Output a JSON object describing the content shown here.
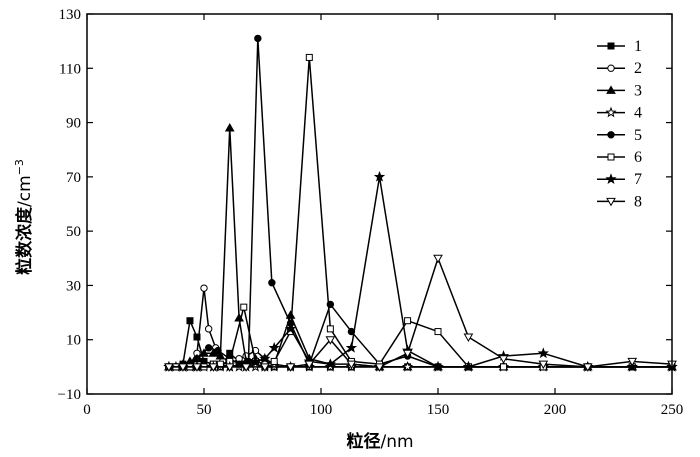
{
  "chart_data": {
    "type": "line",
    "xlabel_text": "粒径",
    "xlabel_unit": "/nm",
    "ylabel_text": "粒数浓度",
    "ylabel_unit": "/cm",
    "ylabel_exp": "−3",
    "xlim": [
      0,
      250
    ],
    "ylim": [
      -10,
      130
    ],
    "xticks": [
      0,
      50,
      100,
      150,
      200,
      250
    ],
    "yticks": [
      -10,
      10,
      30,
      50,
      70,
      90,
      110,
      130
    ],
    "xtick_labels": [
      "0",
      "50",
      "100",
      "150",
      "200",
      "250"
    ],
    "ytick_labels": [
      "−10",
      "10",
      "30",
      "50",
      "70",
      "90",
      "110",
      "130"
    ],
    "grid": false,
    "legend_position": "top-right",
    "series": [
      {
        "name": "1",
        "marker": "square-filled",
        "x": [
          35,
          38,
          41,
          44,
          47,
          50,
          54,
          57,
          61,
          65,
          68,
          72,
          76,
          80,
          87,
          95,
          104,
          113,
          125,
          137,
          150,
          163,
          178,
          195,
          214,
          233,
          250
        ],
        "y": [
          0,
          0,
          1,
          17,
          11,
          2,
          1,
          0,
          5,
          2,
          1,
          1,
          0,
          0,
          0,
          0,
          0,
          0,
          0,
          0,
          0,
          0,
          0,
          0,
          0,
          0,
          0
        ]
      },
      {
        "name": "2",
        "marker": "circle-open",
        "x": [
          35,
          38,
          41,
          44,
          47,
          50,
          52,
          55,
          58,
          61,
          65,
          68,
          72,
          76,
          80,
          87,
          95,
          104,
          113,
          125,
          137,
          150,
          163,
          178,
          195,
          214,
          233,
          250
        ],
        "y": [
          0,
          0,
          0,
          1,
          5,
          29,
          14,
          7,
          2,
          1,
          3,
          4,
          6,
          3,
          1,
          0,
          0,
          0,
          0,
          0,
          0,
          0,
          0,
          0,
          0,
          0,
          0,
          0
        ]
      },
      {
        "name": "3",
        "marker": "triangle-filled",
        "x": [
          35,
          38,
          41,
          44,
          47,
          50,
          54,
          57,
          61,
          65,
          68,
          72,
          76,
          80,
          87,
          95,
          104,
          113,
          125,
          137,
          150,
          163,
          178,
          195,
          214,
          233,
          250
        ],
        "y": [
          0,
          0,
          1,
          2,
          3,
          5,
          5,
          4,
          88,
          18,
          2,
          3,
          2,
          1,
          19,
          3,
          1,
          1,
          0,
          0,
          0,
          0,
          0,
          0,
          0,
          0,
          0
        ]
      },
      {
        "name": "4",
        "marker": "star-open",
        "x": [
          35,
          38,
          41,
          44,
          47,
          50,
          54,
          57,
          61,
          65,
          68,
          72,
          76,
          80,
          87,
          95,
          104,
          113,
          125,
          137,
          150,
          163,
          178,
          195,
          214,
          233,
          250
        ],
        "y": [
          0,
          0,
          0,
          0,
          0,
          0,
          0,
          0,
          0,
          0,
          0,
          0,
          0,
          0,
          0,
          0,
          0,
          0,
          0,
          0,
          0,
          0,
          0,
          0,
          0,
          0,
          0
        ]
      },
      {
        "name": "5",
        "marker": "circle-filled",
        "x": [
          35,
          38,
          41,
          44,
          47,
          52,
          56,
          61,
          65,
          69,
          73,
          79,
          87,
          95,
          104,
          113,
          125,
          137,
          150,
          163,
          178,
          195,
          214,
          233,
          250
        ],
        "y": [
          0,
          0,
          0,
          0,
          3,
          7,
          6,
          3,
          1,
          2,
          121,
          31,
          16,
          1,
          23,
          13,
          1,
          4,
          0,
          0,
          0,
          0,
          0,
          0,
          0
        ]
      },
      {
        "name": "6",
        "marker": "square-open",
        "x": [
          35,
          38,
          41,
          44,
          47,
          50,
          54,
          57,
          61,
          67,
          72,
          76,
          80,
          87,
          95,
          104,
          113,
          125,
          137,
          150,
          163,
          178,
          195,
          214,
          233,
          250
        ],
        "y": [
          0,
          0,
          0,
          0,
          0,
          0,
          1,
          1,
          2,
          22,
          2,
          1,
          2,
          13,
          114,
          14,
          2,
          1,
          17,
          13,
          0,
          0,
          0,
          0,
          0,
          0
        ]
      },
      {
        "name": "7",
        "marker": "star-filled",
        "x": [
          35,
          41,
          47,
          54,
          61,
          68,
          72,
          76,
          80,
          87,
          95,
          104,
          113,
          125,
          137,
          150,
          163,
          178,
          195,
          214,
          233,
          250
        ],
        "y": [
          0,
          0,
          0,
          0,
          0,
          1,
          2,
          3,
          7,
          14,
          2,
          1,
          7,
          70,
          6,
          0,
          0,
          4,
          5,
          0,
          0,
          0
        ]
      },
      {
        "name": "8",
        "marker": "triangle-down-open",
        "x": [
          35,
          41,
          47,
          54,
          61,
          68,
          76,
          87,
          95,
          104,
          113,
          125,
          137,
          150,
          163,
          178,
          195,
          214,
          233,
          250
        ],
        "y": [
          0,
          0,
          0,
          0,
          0,
          0,
          0,
          0,
          1,
          10,
          1,
          0,
          5,
          40,
          11,
          3,
          1,
          0,
          2,
          1
        ]
      }
    ]
  }
}
